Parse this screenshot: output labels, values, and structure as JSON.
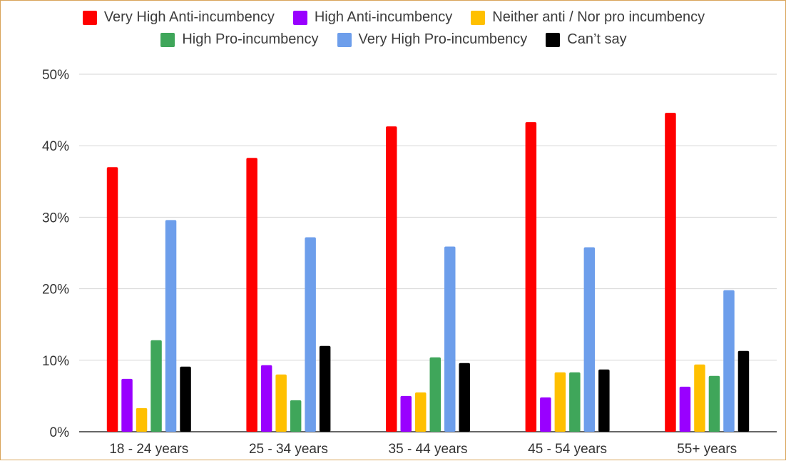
{
  "chart_data": {
    "type": "bar",
    "categories": [
      "18 - 24 years",
      "25 - 34 years",
      "35 - 44 years",
      "45 - 54 years",
      "55+ years"
    ],
    "series": [
      {
        "name": "Very High Anti-incumbency",
        "color": "#ff0000",
        "values": [
          37.0,
          38.3,
          42.7,
          43.3,
          44.6
        ]
      },
      {
        "name": "High Anti-incumbency",
        "color": "#9900ff",
        "values": [
          7.4,
          9.3,
          5.0,
          4.8,
          6.3
        ]
      },
      {
        "name": "Neither anti / Nor pro incumbency",
        "color": "#ffc000",
        "values": [
          3.3,
          8.0,
          5.5,
          8.3,
          9.4
        ]
      },
      {
        "name": "High Pro-incumbency",
        "color": "#3fa65a",
        "values": [
          12.8,
          4.4,
          10.4,
          8.3,
          7.8
        ]
      },
      {
        "name": "Very High Pro-incumbency",
        "color": "#6d9eeb",
        "values": [
          29.6,
          27.2,
          25.9,
          25.8,
          19.8
        ]
      },
      {
        "name": "Can’t say",
        "color": "#000000",
        "values": [
          9.1,
          12.0,
          9.6,
          8.7,
          11.3
        ]
      }
    ],
    "ylim": [
      0,
      50
    ],
    "yticks": [
      "0%",
      "10%",
      "20%",
      "30%",
      "40%",
      "50%"
    ],
    "grid": true,
    "legend_position": "top"
  }
}
